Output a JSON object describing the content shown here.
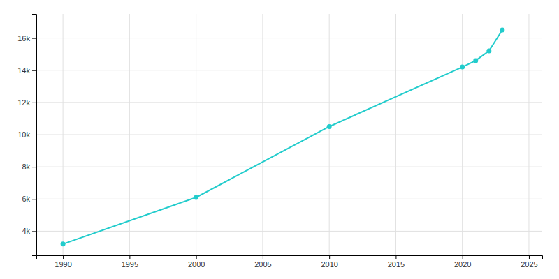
{
  "chart_data": {
    "type": "line",
    "x": [
      1990,
      2000,
      2010,
      2020,
      2021,
      2022,
      2023
    ],
    "values": [
      3200,
      6100,
      10500,
      14200,
      14600,
      15200,
      16500
    ],
    "color": "#22CCCC",
    "marker": "circle",
    "xlim": [
      1988,
      2026
    ],
    "ylim": [
      2500,
      17500
    ],
    "xticks": [
      1990,
      1995,
      2000,
      2005,
      2010,
      2015,
      2020,
      2025
    ],
    "yticks": [
      {
        "value": 4000,
        "label": "4k"
      },
      {
        "value": 6000,
        "label": "6k"
      },
      {
        "value": 8000,
        "label": "8k"
      },
      {
        "value": 10000,
        "label": "10k"
      },
      {
        "value": 12000,
        "label": "12k"
      },
      {
        "value": 14000,
        "label": "14k"
      },
      {
        "value": 16000,
        "label": "16k"
      }
    ],
    "grid": true
  }
}
